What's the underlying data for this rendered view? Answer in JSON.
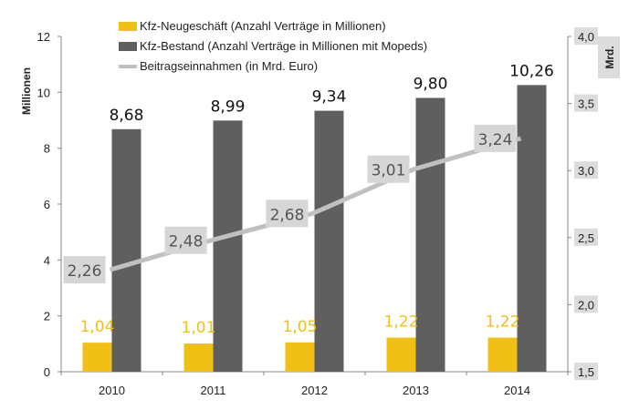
{
  "chart_data": {
    "type": "bar",
    "categories": [
      "2010",
      "2011",
      "2012",
      "2013",
      "2014"
    ],
    "series": [
      {
        "name": "Kfz-Neugeschäft (Anzahl Verträge in Millionen)",
        "kind": "bar",
        "axis": "left",
        "color": "#f0c015",
        "values": [
          1.04,
          1.01,
          1.05,
          1.22,
          1.22
        ],
        "labels": [
          "1,04",
          "1,01",
          "1,05",
          "1,22",
          "1,22"
        ]
      },
      {
        "name": "Kfz-Bestand (Anzahl Verträge in Millionen mit Mopeds)",
        "kind": "bar",
        "axis": "left",
        "color": "#5f5f5f",
        "values": [
          8.68,
          8.99,
          9.34,
          9.8,
          10.26
        ],
        "labels": [
          "8,68",
          "8,99",
          "9,34",
          "9,80",
          "10,26"
        ]
      },
      {
        "name": "Beitragseinnahmen (in Mrd. Euro)",
        "kind": "line",
        "axis": "right",
        "color": "#c0c0c0",
        "values": [
          2.26,
          2.48,
          2.68,
          3.01,
          3.24
        ],
        "labels": [
          "2,26",
          "2,48",
          "2,68",
          "3,01",
          "3,24"
        ]
      }
    ],
    "ylabel": "Millionen",
    "ylabel_right": "Mrd.",
    "ylim": [
      0,
      12
    ],
    "yticks": [
      "0",
      "2",
      "4",
      "6",
      "8",
      "10",
      "12"
    ],
    "ylim_right": [
      1.5,
      4.0
    ],
    "yticks_right": [
      "1,5",
      "2,0",
      "2,5",
      "3,0",
      "3,5",
      "4,0"
    ],
    "legend_position": "top-left",
    "grid": false
  }
}
